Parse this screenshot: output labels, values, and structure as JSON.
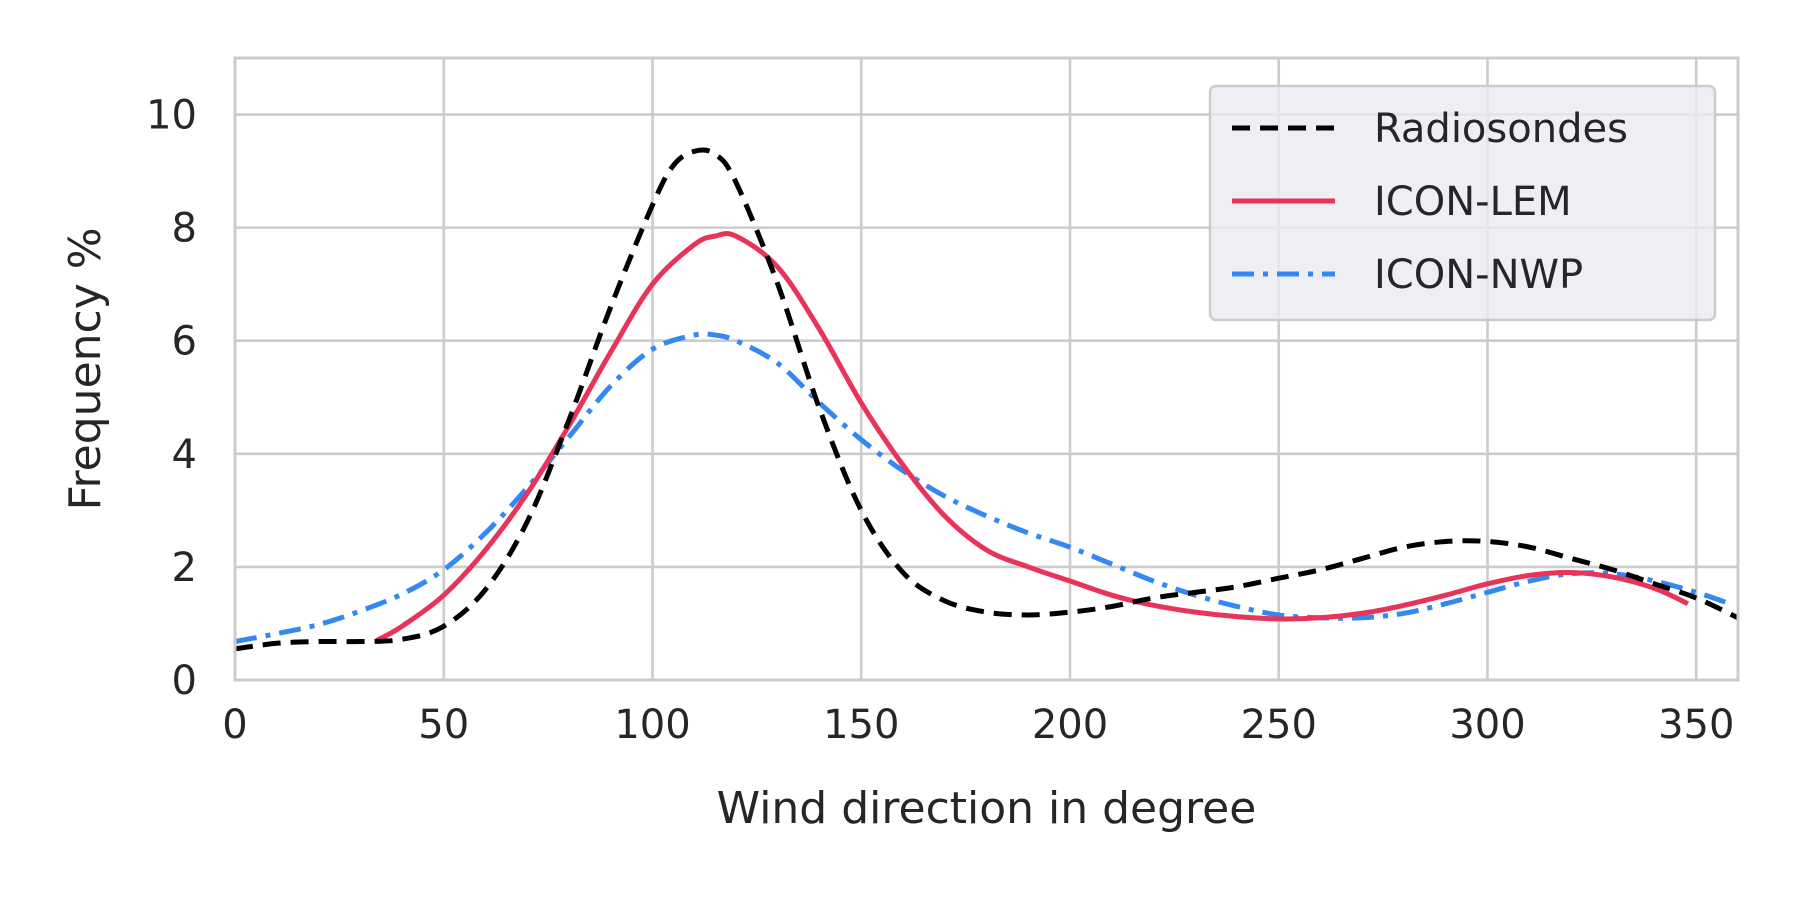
{
  "chart_data": {
    "type": "line",
    "title": "",
    "xlabel": "Wind direction in degree",
    "ylabel": "Frequency %",
    "xlim": [
      0,
      360
    ],
    "ylim": [
      0,
      11
    ],
    "xticks": [
      0,
      50,
      100,
      150,
      200,
      250,
      300,
      350
    ],
    "yticks": [
      0,
      2,
      4,
      6,
      8,
      10
    ],
    "grid": true,
    "legend_position": "top-right",
    "series": [
      {
        "name": "Radiosondes",
        "color": "#000000",
        "style": "dashed",
        "x": [
          0,
          10,
          20,
          30,
          40,
          50,
          60,
          70,
          80,
          90,
          100,
          105,
          110,
          115,
          120,
          130,
          140,
          150,
          160,
          170,
          180,
          190,
          200,
          210,
          220,
          230,
          240,
          250,
          260,
          270,
          280,
          290,
          300,
          310,
          320,
          330,
          340,
          350,
          360
        ],
        "y": [
          0.55,
          0.65,
          0.68,
          0.68,
          0.72,
          0.95,
          1.6,
          2.8,
          4.6,
          6.6,
          8.4,
          9.1,
          9.35,
          9.3,
          8.8,
          7.0,
          4.8,
          3.0,
          1.9,
          1.4,
          1.2,
          1.15,
          1.2,
          1.3,
          1.45,
          1.55,
          1.65,
          1.8,
          1.95,
          2.15,
          2.35,
          2.45,
          2.45,
          2.35,
          2.15,
          1.95,
          1.7,
          1.45,
          1.1
        ]
      },
      {
        "name": "ICON-LEM",
        "color": "#e8335a",
        "style": "solid",
        "x": [
          34,
          40,
          50,
          60,
          70,
          80,
          90,
          100,
          110,
          115,
          120,
          130,
          140,
          150,
          160,
          170,
          180,
          190,
          200,
          210,
          220,
          230,
          240,
          250,
          260,
          270,
          280,
          290,
          300,
          310,
          320,
          330,
          340,
          348
        ],
        "y": [
          0.7,
          0.95,
          1.5,
          2.3,
          3.3,
          4.5,
          5.8,
          7.0,
          7.7,
          7.85,
          7.85,
          7.3,
          6.2,
          4.9,
          3.8,
          2.9,
          2.3,
          2.0,
          1.75,
          1.5,
          1.32,
          1.2,
          1.12,
          1.08,
          1.1,
          1.18,
          1.32,
          1.5,
          1.7,
          1.85,
          1.9,
          1.82,
          1.62,
          1.35
        ]
      },
      {
        "name": "ICON-NWP",
        "color": "#3488f2",
        "style": "dashdot",
        "x": [
          0,
          10,
          20,
          30,
          40,
          50,
          60,
          70,
          80,
          90,
          100,
          110,
          115,
          120,
          130,
          140,
          150,
          160,
          170,
          180,
          190,
          200,
          210,
          220,
          230,
          240,
          250,
          260,
          270,
          280,
          290,
          300,
          310,
          320,
          330,
          340,
          350,
          358
        ],
        "y": [
          0.68,
          0.82,
          0.98,
          1.22,
          1.52,
          1.95,
          2.6,
          3.4,
          4.3,
          5.2,
          5.85,
          6.1,
          6.1,
          6.0,
          5.6,
          4.9,
          4.25,
          3.7,
          3.25,
          2.9,
          2.6,
          2.35,
          2.05,
          1.75,
          1.5,
          1.3,
          1.15,
          1.1,
          1.1,
          1.18,
          1.35,
          1.55,
          1.75,
          1.88,
          1.88,
          1.75,
          1.55,
          1.35
        ]
      }
    ]
  }
}
